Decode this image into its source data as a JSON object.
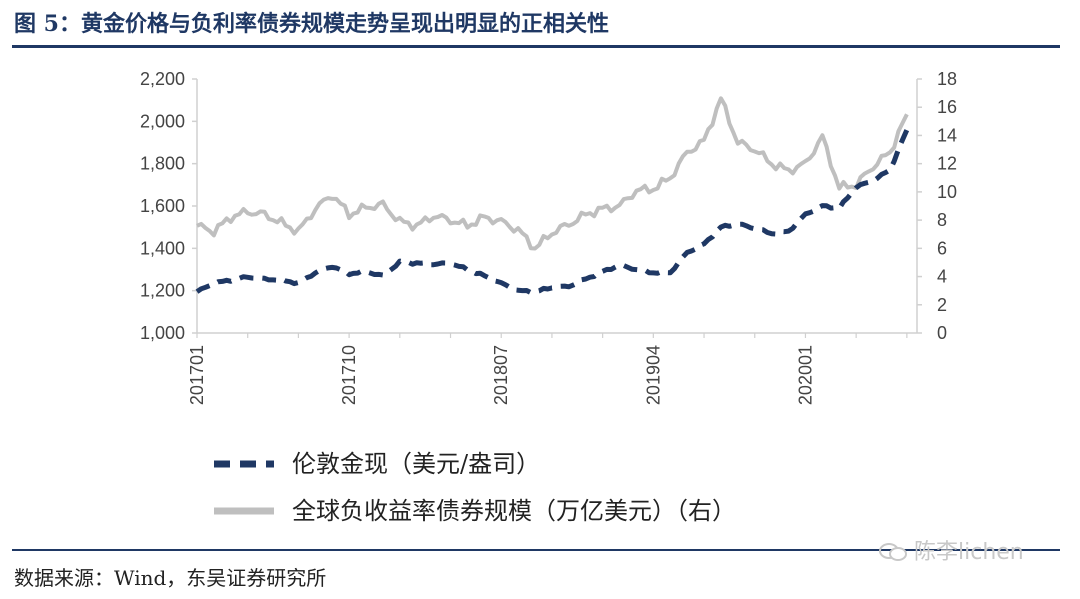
{
  "header": {
    "title": "图 5：黄金价格与负利率债券规模走势呈现出明显的正相关性"
  },
  "footer": {
    "source": "数据来源：Wind，东吴证券研究所",
    "watermark": "陈李lichen"
  },
  "colors": {
    "title": "#1f3864",
    "gold_series": "#1f3864",
    "negative_bond_series": "#bfbfbf",
    "axis": "#d0d0d0"
  },
  "chart_data": {
    "type": "line",
    "x_ticks": [
      "201701",
      "201710",
      "201807",
      "201904",
      "202001"
    ],
    "y_left": {
      "min": 1000,
      "max": 2200,
      "ticks": [
        "1,000",
        "1,200",
        "1,400",
        "1,600",
        "1,800",
        "2,000",
        "2,200"
      ]
    },
    "y_right": {
      "min": 0,
      "max": 18,
      "ticks": [
        "0",
        "2",
        "4",
        "6",
        "8",
        "10",
        "12",
        "14",
        "16",
        "18"
      ]
    },
    "grid": false,
    "legend_position": "bottom",
    "series": [
      {
        "name": "伦敦金现（美元/盎司）",
        "axis": "left",
        "style": "dashed",
        "points": [
          [
            "2017-01",
            1195
          ],
          [
            "2017-02",
            1235
          ],
          [
            "2017-03",
            1250
          ],
          [
            "2017-04",
            1265
          ],
          [
            "2017-05",
            1255
          ],
          [
            "2017-06",
            1250
          ],
          [
            "2017-07",
            1235
          ],
          [
            "2017-08",
            1285
          ],
          [
            "2017-09",
            1315
          ],
          [
            "2017-10",
            1280
          ],
          [
            "2017-11",
            1290
          ],
          [
            "2017-12",
            1270
          ],
          [
            "2018-01",
            1335
          ],
          [
            "2018-02",
            1330
          ],
          [
            "2018-03",
            1325
          ],
          [
            "2018-04",
            1330
          ],
          [
            "2018-05",
            1300
          ],
          [
            "2018-06",
            1270
          ],
          [
            "2018-07",
            1235
          ],
          [
            "2018-08",
            1200
          ],
          [
            "2018-09",
            1195
          ],
          [
            "2018-10",
            1215
          ],
          [
            "2018-11",
            1220
          ],
          [
            "2018-12",
            1255
          ],
          [
            "2019-01",
            1290
          ],
          [
            "2019-02",
            1320
          ],
          [
            "2019-03",
            1300
          ],
          [
            "2019-04",
            1285
          ],
          [
            "2019-05",
            1285
          ],
          [
            "2019-06",
            1380
          ],
          [
            "2019-07",
            1420
          ],
          [
            "2019-08",
            1500
          ],
          [
            "2019-09",
            1515
          ],
          [
            "2019-10",
            1495
          ],
          [
            "2019-11",
            1470
          ],
          [
            "2019-12",
            1480
          ],
          [
            "2020-01",
            1560
          ],
          [
            "2020-02",
            1600
          ],
          [
            "2020-03",
            1590
          ],
          [
            "2020-04",
            1690
          ],
          [
            "2020-05",
            1720
          ],
          [
            "2020-06",
            1770
          ],
          [
            "2020-07",
            1960
          ]
        ]
      },
      {
        "name": "全球负收益率债券规模（万亿美元）（右）",
        "axis": "right",
        "style": "solid",
        "points": [
          [
            "2017-01",
            7.6
          ],
          [
            "2017-02",
            7.2
          ],
          [
            "2017-03",
            8.2
          ],
          [
            "2017-04",
            8.6
          ],
          [
            "2017-05",
            8.4
          ],
          [
            "2017-06",
            7.8
          ],
          [
            "2017-07",
            7.2
          ],
          [
            "2017-08",
            8.8
          ],
          [
            "2017-09",
            9.8
          ],
          [
            "2017-10",
            8.4
          ],
          [
            "2017-11",
            8.9
          ],
          [
            "2017-12",
            9.1
          ],
          [
            "2018-01",
            7.9
          ],
          [
            "2018-02",
            7.6
          ],
          [
            "2018-03",
            8.3
          ],
          [
            "2018-04",
            8.0
          ],
          [
            "2018-05",
            7.6
          ],
          [
            "2018-06",
            8.2
          ],
          [
            "2018-07",
            7.9
          ],
          [
            "2018-08",
            7.3
          ],
          [
            "2018-09",
            6.0
          ],
          [
            "2018-10",
            7.1
          ],
          [
            "2018-11",
            7.7
          ],
          [
            "2018-12",
            8.4
          ],
          [
            "2019-01",
            8.8
          ],
          [
            "2019-02",
            9.0
          ],
          [
            "2019-03",
            10.1
          ],
          [
            "2019-04",
            10.2
          ],
          [
            "2019-05",
            11.0
          ],
          [
            "2019-06",
            12.8
          ],
          [
            "2019-07",
            13.6
          ],
          [
            "2019-08",
            16.6
          ],
          [
            "2019-09",
            13.5
          ],
          [
            "2019-10",
            13.0
          ],
          [
            "2019-11",
            12.0
          ],
          [
            "2019-12",
            11.5
          ],
          [
            "2020-01",
            12.0
          ],
          [
            "2020-02",
            13.9
          ],
          [
            "2020-03",
            10.3
          ],
          [
            "2020-04",
            10.5
          ],
          [
            "2020-05",
            11.8
          ],
          [
            "2020-06",
            12.8
          ],
          [
            "2020-07",
            15.5
          ]
        ]
      }
    ]
  }
}
